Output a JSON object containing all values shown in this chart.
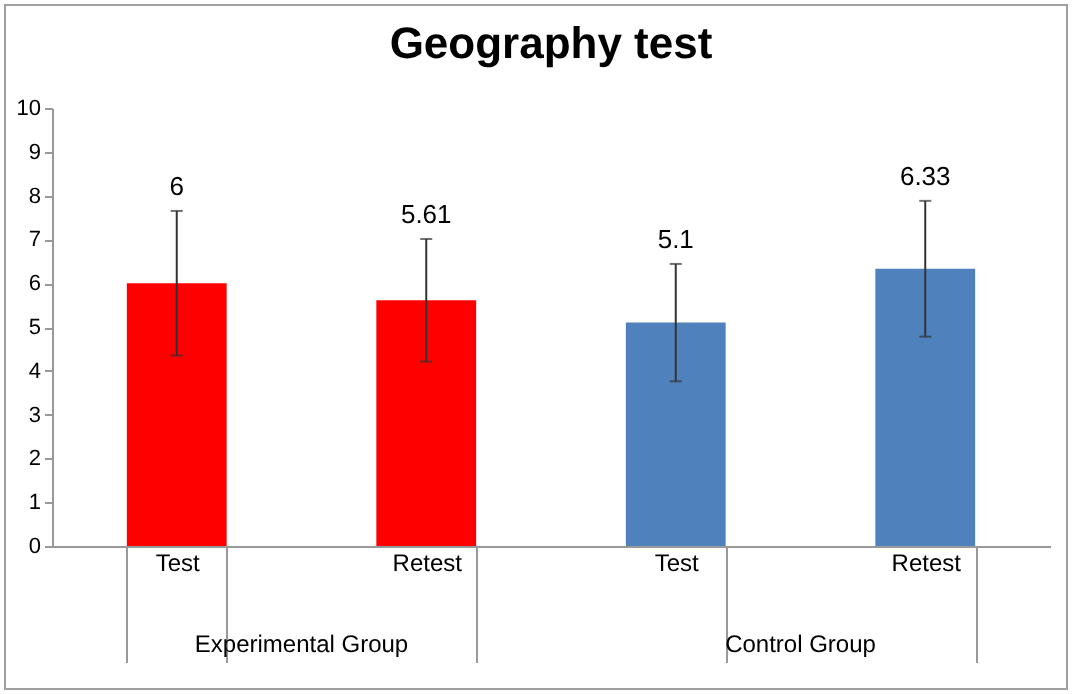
{
  "chart_data": {
    "type": "bar",
    "title": "Geography test",
    "categories": [
      "Test",
      "Retest",
      "Test",
      "Retest"
    ],
    "values": [
      6,
      5.61,
      5.1,
      6.33
    ],
    "colors": [
      "#ff0000",
      "#ff0000",
      "#4f81bd",
      "#4f81bd"
    ],
    "errors": [
      1.65,
      1.4,
      1.34,
      1.55
    ],
    "data_labels": true,
    "annotations": [
      "Experimental Group",
      "Control Group"
    ],
    "ylim": [
      0,
      10
    ],
    "yticks": [
      0,
      1,
      2,
      3,
      4,
      5,
      6,
      7,
      8,
      9,
      10
    ],
    "grid": false
  }
}
